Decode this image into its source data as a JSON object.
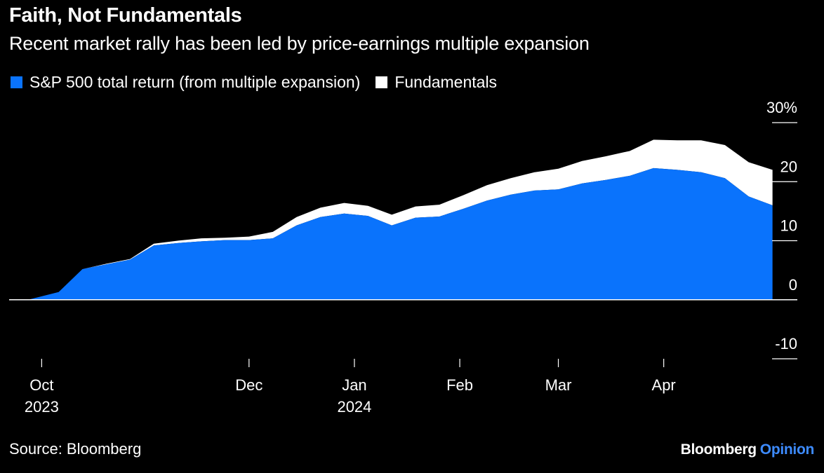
{
  "header": {
    "title": "Faith, Not Fundamentals",
    "subtitle": "Recent market rally has been led by price-earnings multiple expansion"
  },
  "footer": {
    "source": "Source: Bloomberg",
    "brand_main": "Bloomberg",
    "brand_accent": "Opinion"
  },
  "colors": {
    "background": "#000000",
    "multiple_expansion": "#0a73fc",
    "fundamentals": "#ffffff",
    "brand_accent": "#3d8bff",
    "gridline": "#ffffff"
  },
  "chart_data": {
    "type": "area",
    "title": "Faith, Not Fundamentals",
    "subtitle": "Recent market rally has been led by price-earnings multiple expansion",
    "stacked": true,
    "ylim": [
      -10,
      30
    ],
    "yticks": [
      30,
      20,
      10,
      0,
      -10
    ],
    "ytick_labels": [
      "30%",
      "20",
      "10",
      "0",
      "-10"
    ],
    "xlim": [
      "2023-09-27",
      "2024-05-07"
    ],
    "xticks": [
      {
        "date": "2023-10-01",
        "label": "Oct",
        "year": "2023"
      },
      {
        "date": "2023-12-01",
        "label": "Dec",
        "year": ""
      },
      {
        "date": "2024-01-01",
        "label": "Jan",
        "year": "2024"
      },
      {
        "date": "2024-02-01",
        "label": "Feb",
        "year": ""
      },
      {
        "date": "2024-03-01",
        "label": "Mar",
        "year": ""
      },
      {
        "date": "2024-04-01",
        "label": "Apr",
        "year": ""
      }
    ],
    "legend_position": "top-left",
    "grid": false,
    "x": [
      "2023-09-27",
      "2023-10-06",
      "2023-10-13",
      "2023-10-20",
      "2023-10-27",
      "2023-11-03",
      "2023-11-10",
      "2023-11-17",
      "2023-11-24",
      "2023-12-01",
      "2023-12-08",
      "2023-12-15",
      "2023-12-22",
      "2023-12-29",
      "2024-01-05",
      "2024-01-12",
      "2024-01-19",
      "2024-01-26",
      "2024-02-02",
      "2024-02-09",
      "2024-02-16",
      "2024-02-23",
      "2024-03-01",
      "2024-03-08",
      "2024-03-15",
      "2024-03-22",
      "2024-03-29",
      "2024-04-05",
      "2024-04-12",
      "2024-04-19",
      "2024-04-26",
      "2024-05-03"
    ],
    "series": [
      {
        "name": "S&P 500 total return (from multiple expansion)",
        "values": [
          0.0,
          1.3,
          5.2,
          6.0,
          6.8,
          9.2,
          9.6,
          9.9,
          10.1,
          10.1,
          10.4,
          12.6,
          14.0,
          14.6,
          14.2,
          12.6,
          13.9,
          14.1,
          15.4,
          16.8,
          17.8,
          18.5,
          18.7,
          19.7,
          20.3,
          21.0,
          22.3,
          22.0,
          21.6,
          20.6,
          17.5,
          16.0
        ]
      },
      {
        "name": "Fundamentals",
        "values": [
          0.0,
          0.0,
          0.0,
          0.1,
          0.1,
          0.3,
          0.4,
          0.5,
          0.4,
          0.6,
          1.1,
          1.4,
          1.6,
          1.8,
          1.7,
          1.8,
          1.9,
          2.0,
          2.3,
          2.6,
          2.8,
          3.1,
          3.5,
          3.8,
          4.0,
          4.2,
          4.8,
          5.0,
          5.4,
          5.6,
          5.8,
          6.0
        ]
      }
    ]
  }
}
